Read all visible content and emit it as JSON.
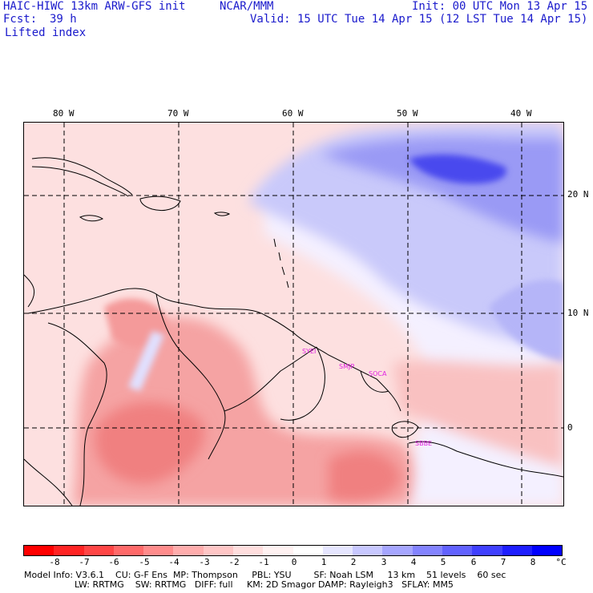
{
  "header": {
    "model_title": "HAIC-HIWC 13km ARW-GFS init",
    "org": "NCAR/MMM",
    "init": "Init: 00 UTC Mon 13 Apr 15",
    "fcst_label": "Fcst:",
    "fcst_value": "39 h",
    "valid": "Valid: 15 UTC Tue 14 Apr 15 (12 LST Tue 14 Apr 15)",
    "field": "Lifted index"
  },
  "map": {
    "lon_labels": [
      "80 W",
      "70 W",
      "60 W",
      "50 W",
      "40 W"
    ],
    "lat_labels": [
      "20 N",
      "10 N",
      "0"
    ],
    "stations": [
      "SYEI",
      "SMJP",
      "SOCA",
      "SBBE"
    ]
  },
  "colorbar": {
    "labels": [
      "-8",
      "-7",
      "-6",
      "-5",
      "-4",
      "-3",
      "-2",
      "-1",
      "0",
      "1",
      "2",
      "3",
      "4",
      "5",
      "6",
      "7",
      "8"
    ],
    "unit": "°C",
    "colors": [
      "#ff0000",
      "#ff2424",
      "#ff4646",
      "#ff6a6a",
      "#ff8c8c",
      "#ffadad",
      "#ffc6c6",
      "#ffdede",
      "#fff2f2",
      "#ffffff",
      "#e6e6ff",
      "#c8c8ff",
      "#a6a6ff",
      "#8484ff",
      "#6262ff",
      "#4040ff",
      "#1e1eff",
      "#0000ff"
    ]
  },
  "footer": {
    "line1": "Model Info: V3.6.1    CU: G-F Ens  MP: Thompson     PBL: YSU        SF: Noah LSM     13 km    51 levels    60 sec",
    "line2": "                  LW: RRTMG    SW: RRTMG   DIFF: full     KM: 2D Smagor DAMP: Rayleigh3   SFLAY: MM5"
  }
}
